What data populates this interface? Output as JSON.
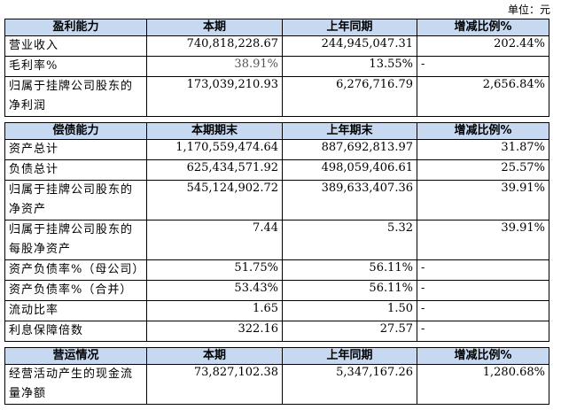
{
  "unit": "单位：元",
  "tables": [
    {
      "header": [
        "盈利能力",
        "本期",
        "上年同期",
        "增减比例%"
      ],
      "rows": [
        [
          "营业收入",
          "740,818,228.67",
          "244,945,047.31",
          "202.44%"
        ],
        [
          "毛利率%",
          "38.91%",
          "13.55%",
          "-"
        ],
        [
          "归属于挂牌公司股东的净利润",
          "173,039,210.93",
          "6,276,716.79",
          "2,656.84%"
        ]
      ]
    },
    {
      "header": [
        "偿债能力",
        "本期期末",
        "上年期末",
        "增减比例%"
      ],
      "rows": [
        [
          "资产总计",
          "1,170,559,474.64",
          "887,692,813.97",
          "31.87%"
        ],
        [
          "负债总计",
          "625,434,571.92",
          "498,059,406.61",
          "25.57%"
        ],
        [
          "归属于挂牌公司股东的净资产",
          "545,124,902.72",
          "389,633,407.36",
          "39.91%"
        ],
        [
          "归属于挂牌公司股东的每股净资产",
          "7.44",
          "5.32",
          "39.91%"
        ],
        [
          "资产负债率%（母公司）",
          "51.75%",
          "56.11%",
          "-"
        ],
        [
          "资产负债率%（合并）",
          "53.43%",
          "56.11%",
          "-"
        ],
        [
          "流动比率",
          "1.65",
          "1.50",
          "-"
        ],
        [
          "利息保障倍数",
          "322.16",
          "27.57",
          "-"
        ]
      ]
    },
    {
      "header": [
        "营运情况",
        "本期",
        "上年同期",
        "增减比例%"
      ],
      "rows": [
        [
          "经营活动产生的现金流量净额",
          "73,827,102.38",
          "5,347,167.26",
          "1,280.68%"
        ]
      ]
    }
  ]
}
